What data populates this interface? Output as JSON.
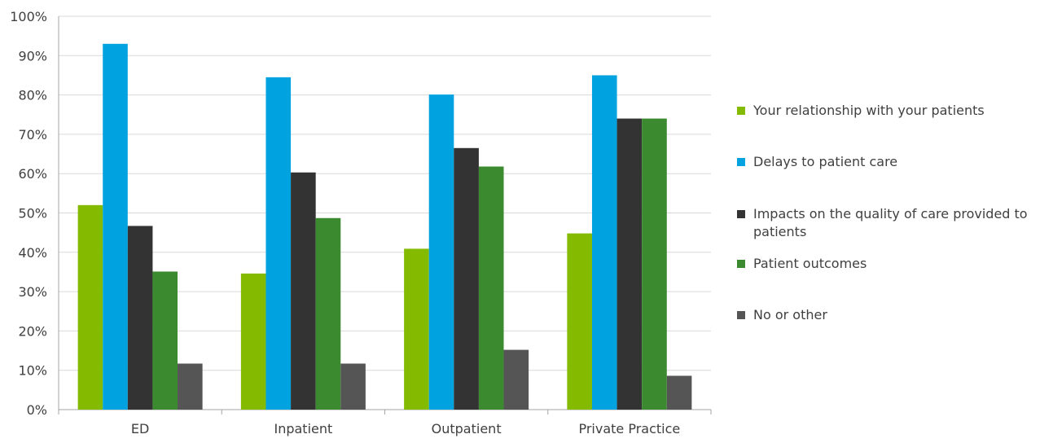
{
  "chart_data": {
    "type": "bar",
    "categories": [
      "ED",
      "Inpatient",
      "Outpatient",
      "Private Practice"
    ],
    "series": [
      {
        "name": "Your relationship with your patients",
        "color": "#84bb00",
        "values": [
          52,
          34.6,
          40.9,
          44.8
        ]
      },
      {
        "name": "Delays to patient care",
        "color": "#00a2e0",
        "values": [
          93,
          84.5,
          80.1,
          85
        ]
      },
      {
        "name": "Impacts on the quality of care provided to patients",
        "color": "#333333",
        "values": [
          46.7,
          60.3,
          66.5,
          74
        ]
      },
      {
        "name": "Patient outcomes",
        "color": "#3b8a2f",
        "values": [
          35.1,
          48.7,
          61.8,
          74
        ]
      },
      {
        "name": "No or other",
        "color": "#555555",
        "values": [
          11.7,
          11.7,
          15.2,
          8.6
        ]
      }
    ],
    "yticks": [
      "0%",
      "10%",
      "20%",
      "30%",
      "40%",
      "50%",
      "60%",
      "70%",
      "80%",
      "90%",
      "100%"
    ],
    "ylim": [
      0,
      100
    ],
    "grid": true,
    "legend_position": "right"
  }
}
